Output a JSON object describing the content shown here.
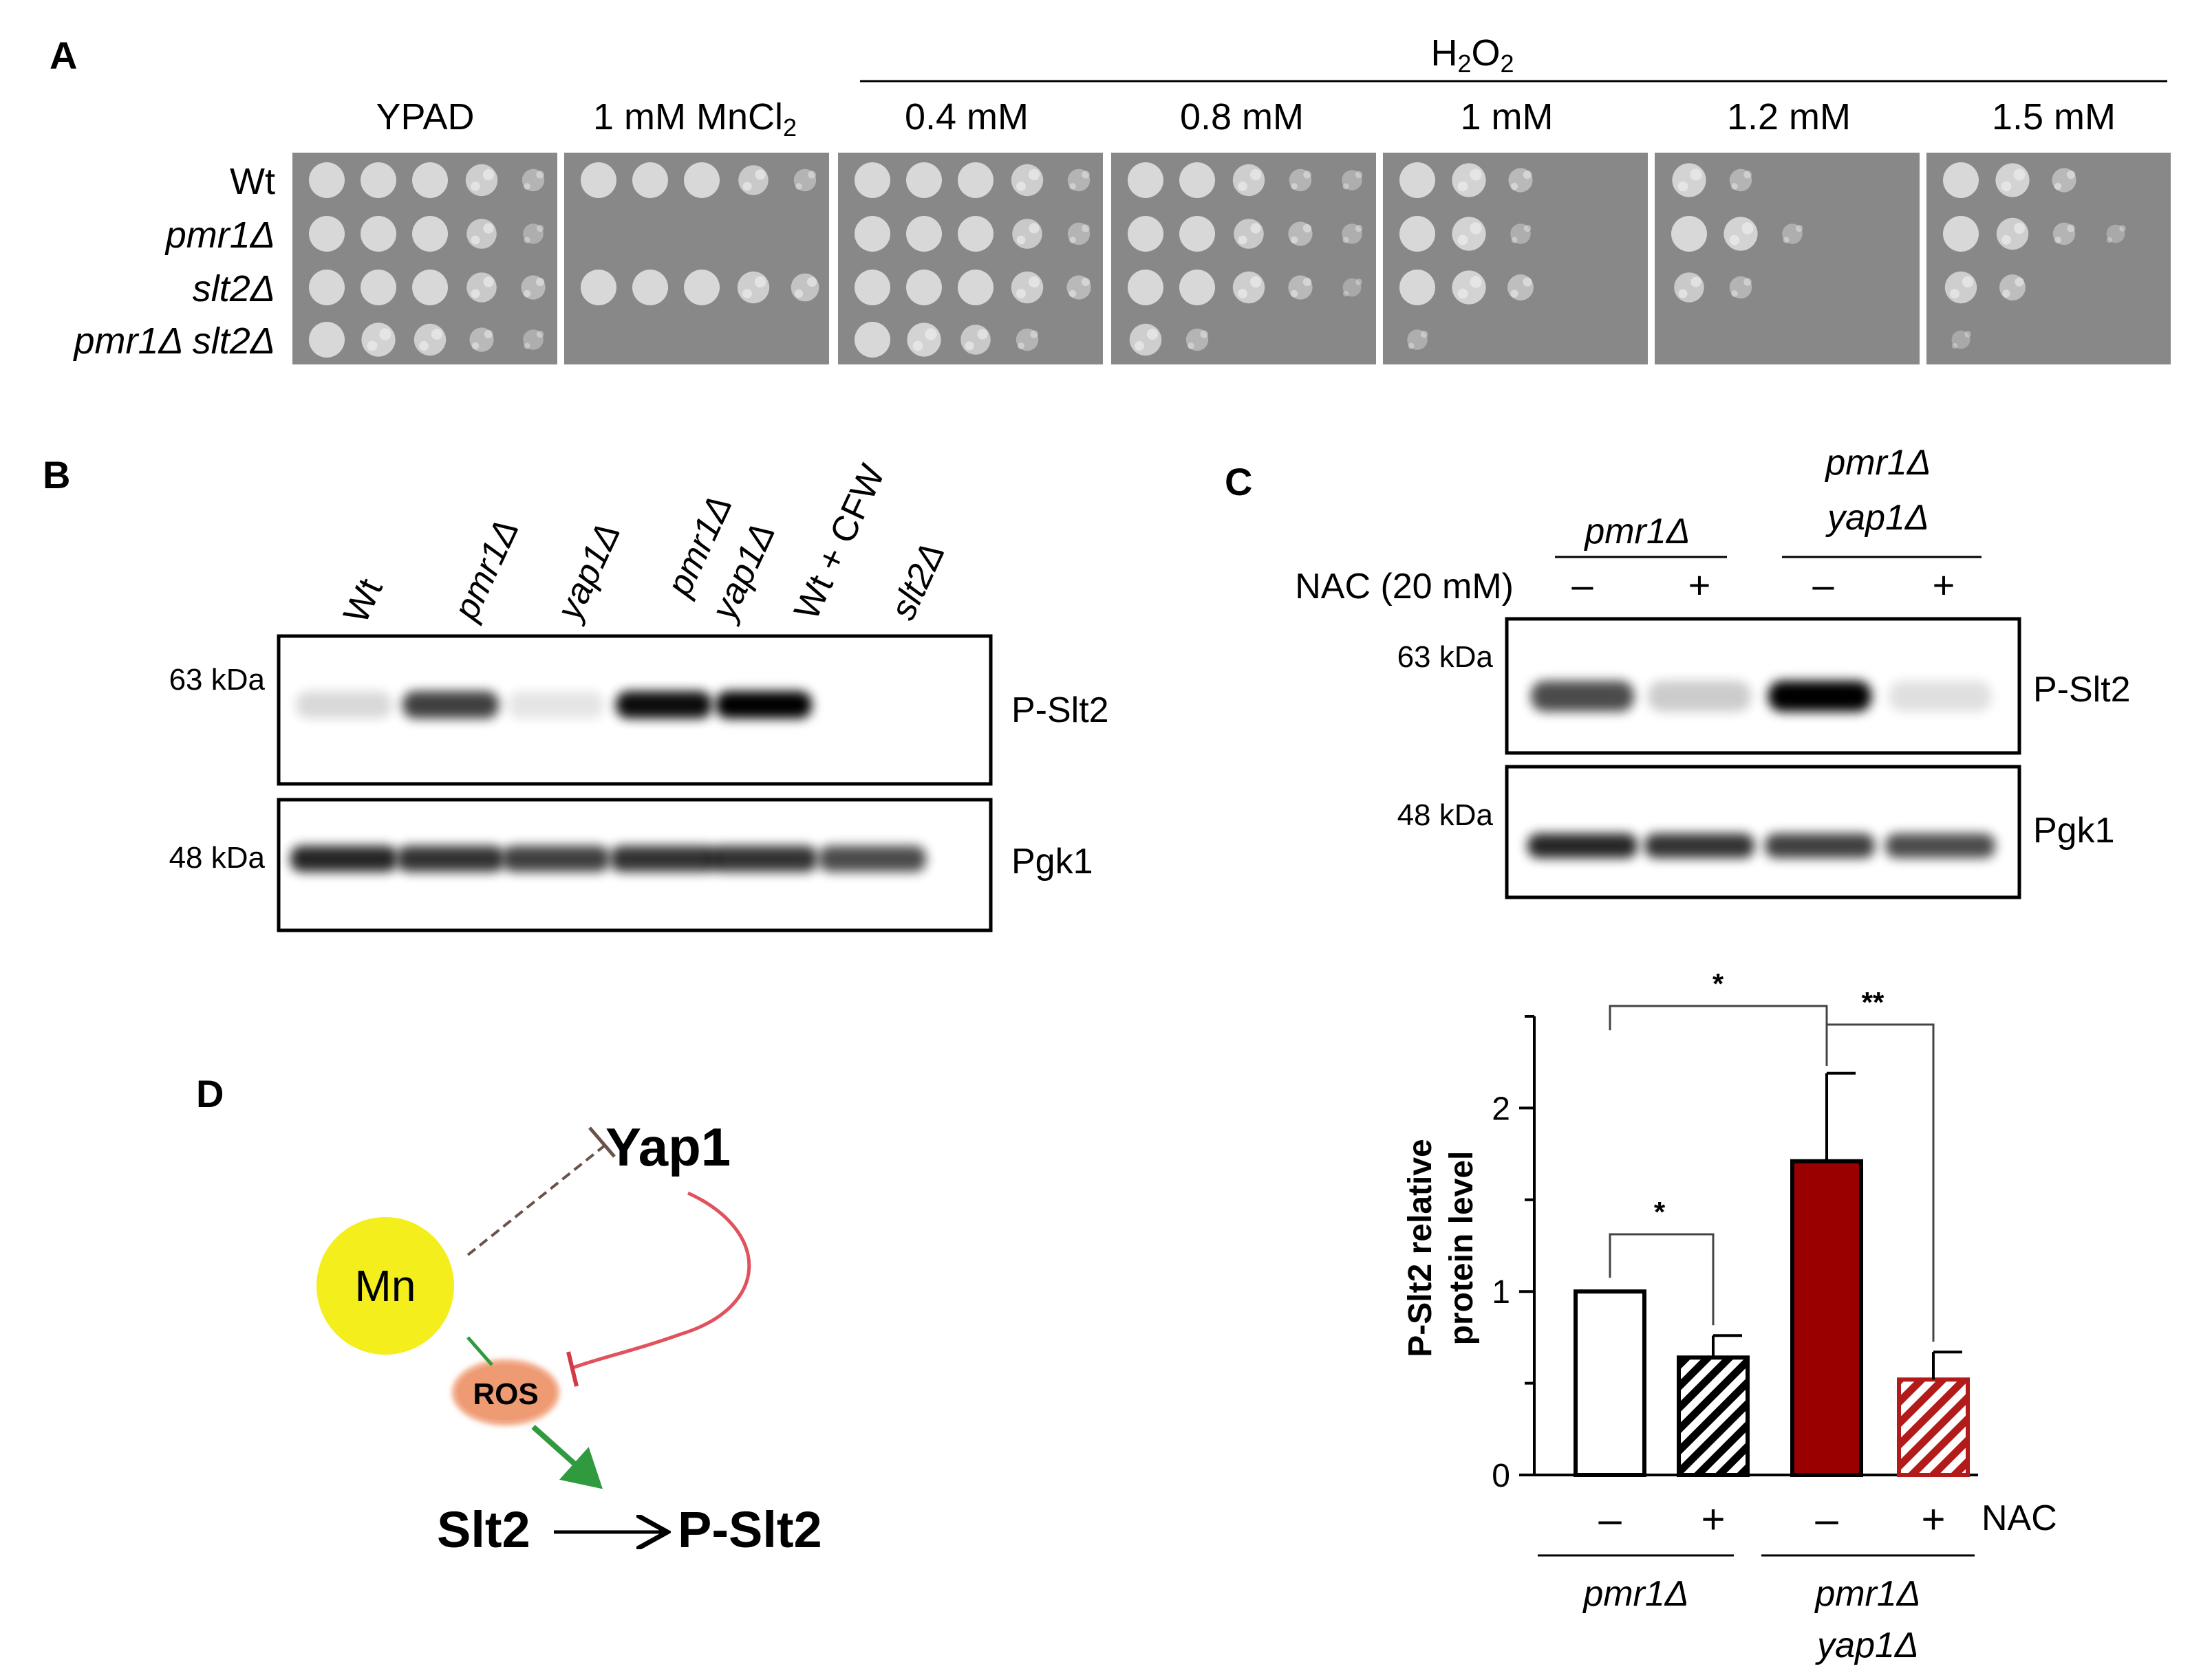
{
  "panel_a": {
    "letter": "A",
    "h2o2_header": "H2O2",
    "conditions": [
      "YPAD",
      "1 mM MnCl2",
      "0.4 mM",
      "0.8 mM",
      "1 mM",
      "1.2 mM",
      "1.5 mM"
    ],
    "strains": [
      "Wt",
      "pmr1Δ",
      "slt2Δ",
      "pmr1Δ slt2Δ"
    ]
  },
  "panel_b": {
    "letter": "B",
    "lanes": [
      "Wt",
      "pmr1Δ",
      "yap1Δ",
      "pmr1Δ",
      "yap1Δ",
      "Wt + CFW",
      "slt2Δ"
    ],
    "mw_top": "63 kDa",
    "mw_bottom": "48 kDa",
    "label_top": "P-Slt2",
    "label_bottom": "Pgk1"
  },
  "panel_c": {
    "letter": "C",
    "group1": "pmr1Δ",
    "group2_line1": "pmr1Δ",
    "group2_line2": "yap1Δ",
    "nac_label": "NAC (20 mM)",
    "signs": [
      "–",
      "+",
      "–",
      "+"
    ],
    "mw_top": "63 kDa",
    "mw_bottom": "48 kDa",
    "label_top": "P-Slt2",
    "label_bottom": "Pgk1"
  },
  "chart_data": {
    "type": "bar",
    "ylabel_line1": "P-Slt2 relative",
    "ylabel_line2": "protein level",
    "ylim": [
      0,
      2.5
    ],
    "yticks": [
      "0",
      "1",
      "2"
    ],
    "categories": [
      "pmr1Δ −NAC",
      "pmr1Δ +NAC",
      "pmr1Δ yap1Δ −NAC",
      "pmr1Δ yap1Δ +NAC"
    ],
    "values": [
      1.0,
      0.64,
      1.71,
      0.52
    ],
    "errors": [
      0.0,
      0.12,
      0.48,
      0.15
    ],
    "colors": [
      "#ffffff",
      "#000000",
      "#9b0000",
      "#b31b1b"
    ],
    "signs": [
      "–",
      "+",
      "–",
      "+"
    ],
    "nac_label": "NAC",
    "group1": "pmr1Δ",
    "group2_line1": "pmr1Δ",
    "group2_line2": "yap1Δ",
    "sig_top": "*",
    "sig_right": "**",
    "sig_left": "*"
  },
  "panel_d": {
    "letter": "D",
    "mn": "Mn",
    "yap1": "Yap1",
    "ros": "ROS",
    "slt2": "Slt2",
    "pslt2": "P-Slt2"
  }
}
